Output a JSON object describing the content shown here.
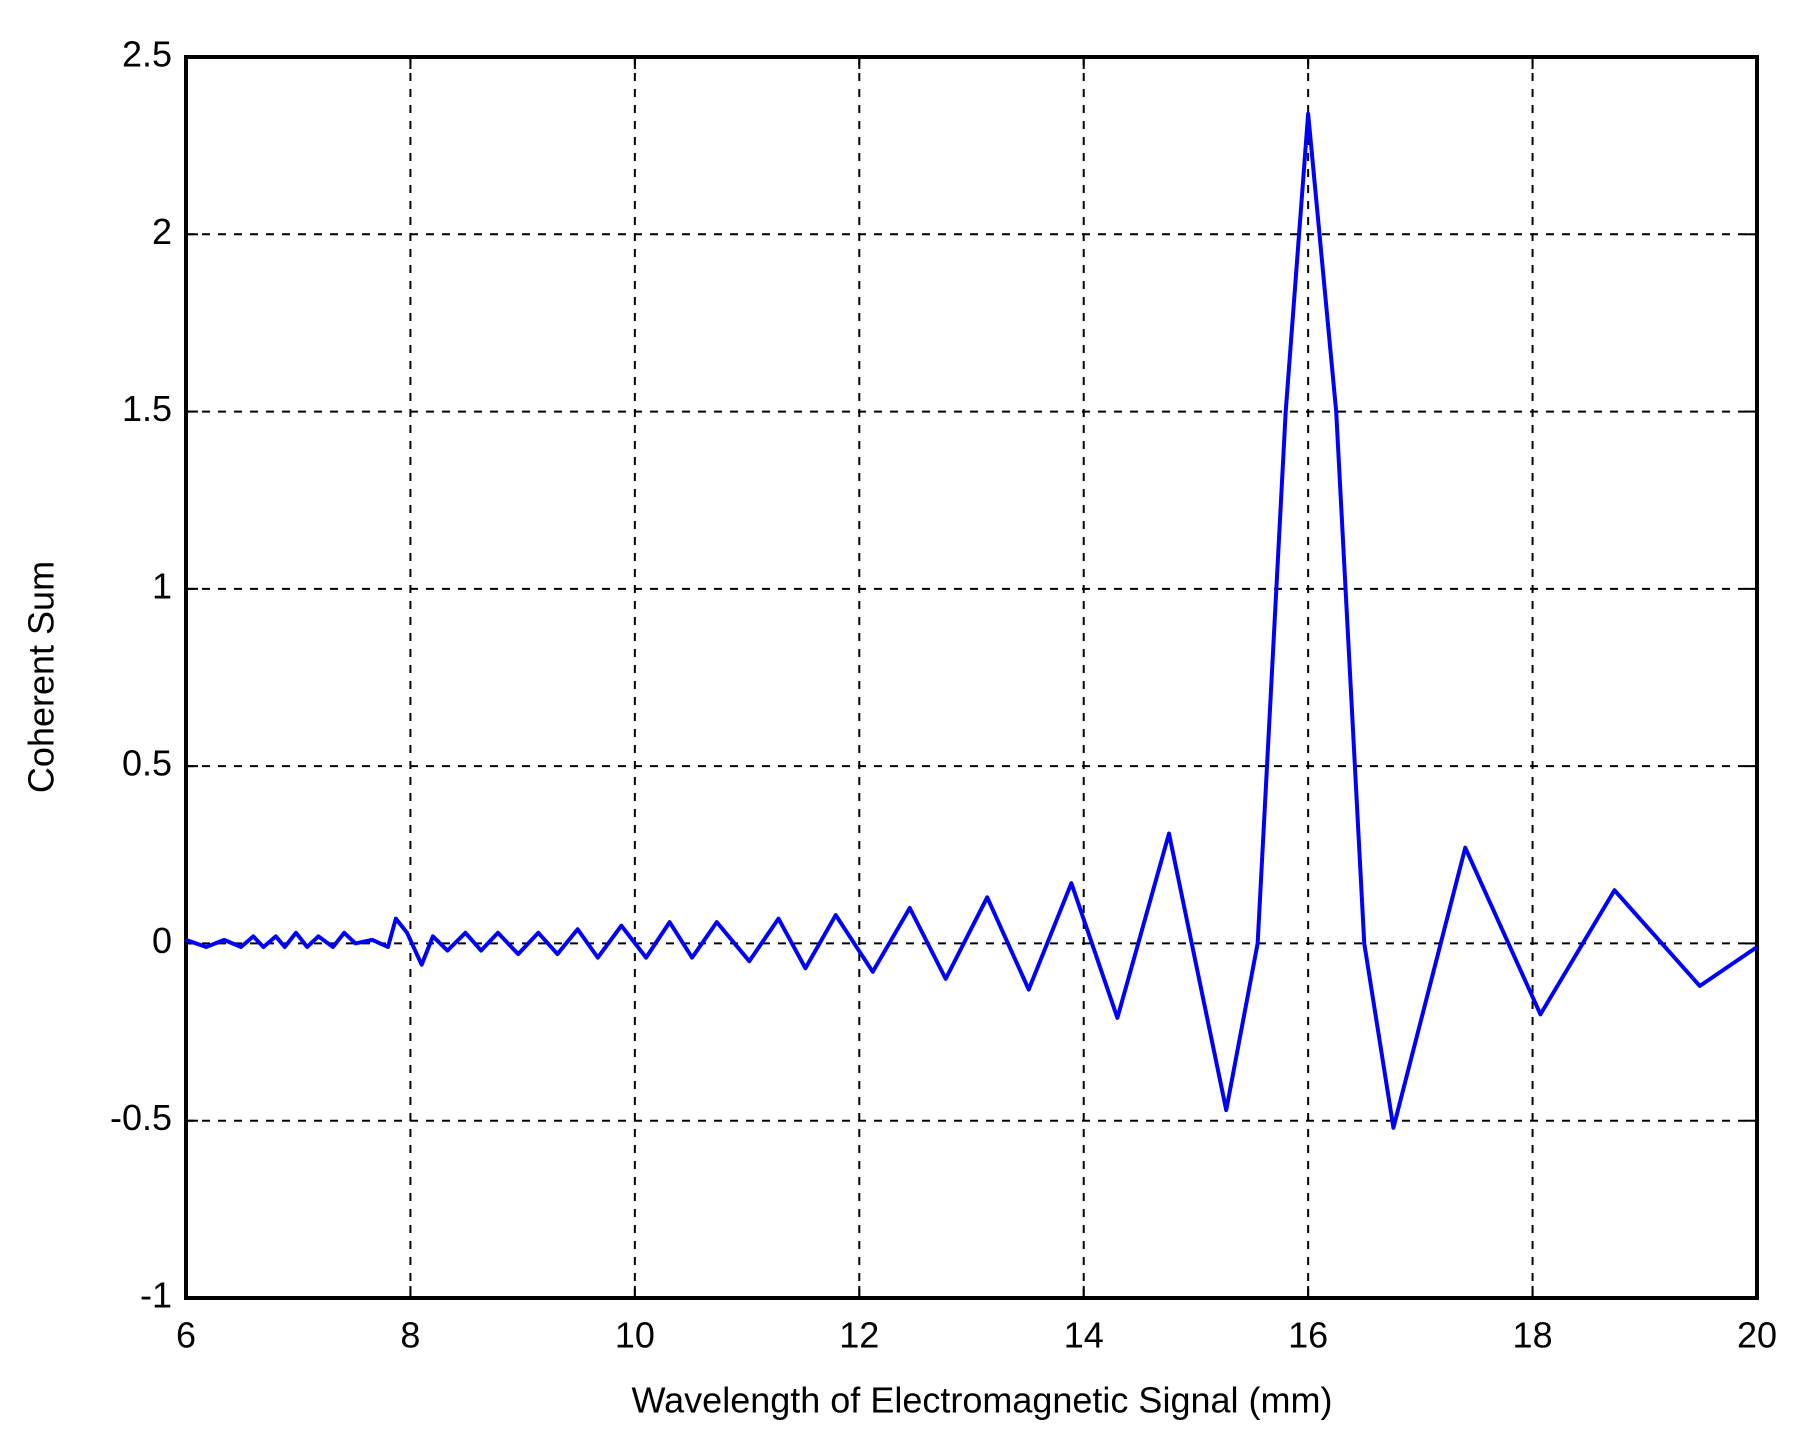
{
  "chart_data": {
    "type": "line",
    "xlabel": "Wavelength of Electromagnetic Signal (mm)",
    "ylabel": "Coherent Sum",
    "xlim": [
      6,
      20
    ],
    "xticks": [
      6,
      8,
      10,
      12,
      14,
      16,
      18,
      20
    ],
    "ylim": [
      -1,
      2.5
    ],
    "yticks": [
      -1,
      -0.5,
      0,
      0.5,
      1,
      1.5,
      2,
      2.5
    ],
    "grid": true,
    "x": [
      6,
      6.18,
      6.34,
      6.49,
      6.6,
      6.69,
      6.8,
      6.88,
      6.98,
      7.08,
      7.18,
      7.31,
      7.41,
      7.51,
      7.66,
      7.8,
      7.87,
      7.97,
      8.1,
      8.2,
      8.33,
      8.49,
      8.63,
      8.78,
      8.96,
      9.14,
      9.31,
      9.49,
      9.67,
      9.88,
      10.1,
      10.31,
      10.51,
      10.73,
      11.02,
      11.28,
      11.52,
      11.79,
      12.12,
      12.45,
      12.77,
      13.14,
      13.51,
      13.89,
      14.3,
      14.76,
      15.27,
      15.55,
      15.8,
      16.0,
      16.25,
      16.5,
      16.76,
      17.4,
      18.07,
      18.73,
      19.49,
      20
    ],
    "series": [
      {
        "name": "Coherent Sum",
        "color": "#0000ff",
        "values": [
          0.01,
          -0.01,
          0.01,
          -0.01,
          0.02,
          -0.01,
          0.02,
          -0.01,
          0.03,
          -0.01,
          0.02,
          -0.01,
          0.03,
          0,
          0.01,
          -0.01,
          0.07,
          0.03,
          -0.06,
          0.02,
          -0.02,
          0.03,
          -0.02,
          0.03,
          -0.03,
          0.03,
          -0.03,
          0.04,
          -0.04,
          0.05,
          -0.04,
          0.06,
          -0.04,
          0.06,
          -0.05,
          0.07,
          -0.07,
          0.08,
          -0.08,
          0.1,
          -0.1,
          0.13,
          -0.13,
          0.17,
          -0.21,
          0.31,
          -0.47,
          0,
          1.5,
          2.34,
          1.5,
          0,
          -0.52,
          0.27,
          -0.2,
          0.15,
          -0.12,
          -0.01
        ]
      }
    ]
  }
}
